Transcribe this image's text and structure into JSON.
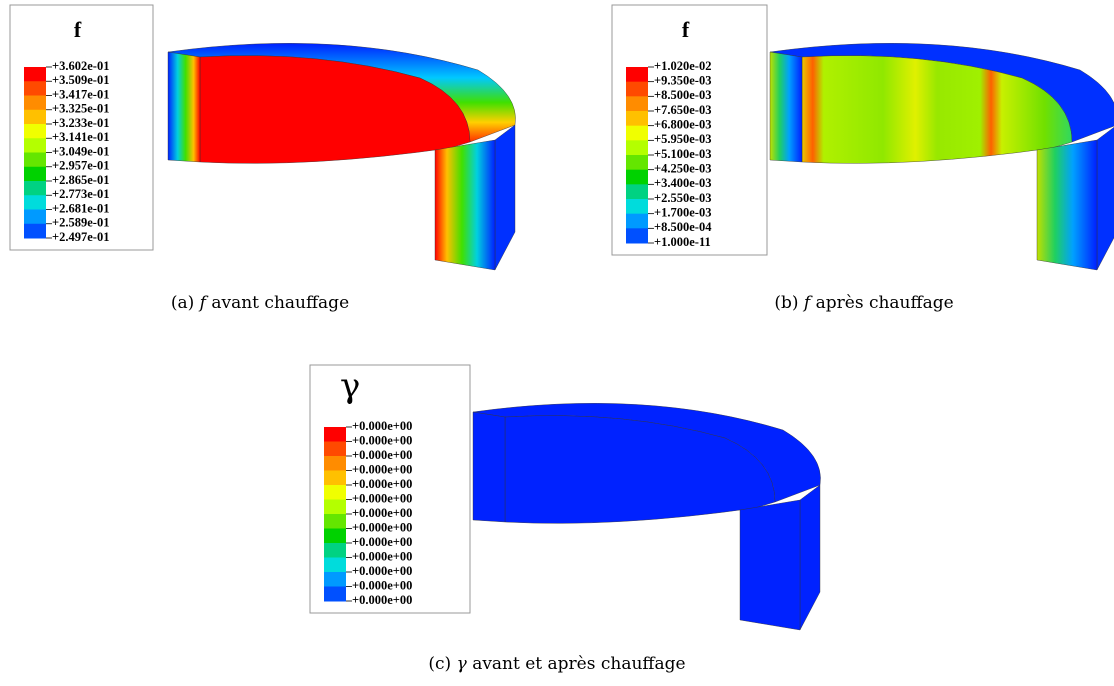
{
  "panels": [
    {
      "legend": {
        "title": "f",
        "labels": [
          "+3.602e-01",
          "+3.509e-01",
          "+3.417e-01",
          "+3.325e-01",
          "+3.233e-01",
          "+3.141e-01",
          "+3.049e-01",
          "+2.957e-01",
          "+2.865e-01",
          "+2.773e-01",
          "+2.681e-01",
          "+2.589e-01",
          "+2.497e-01"
        ]
      },
      "caption": {
        "label": "(a)",
        "symbol": "f",
        "text": "avant chauffage"
      }
    },
    {
      "legend": {
        "title": "f",
        "labels": [
          "+1.020e-02",
          "+9.350e-03",
          "+8.500e-03",
          "+7.650e-03",
          "+6.800e-03",
          "+5.950e-03",
          "+5.100e-03",
          "+4.250e-03",
          "+3.400e-03",
          "+2.550e-03",
          "+1.700e-03",
          "+8.500e-04",
          "+1.000e-11"
        ]
      },
      "caption": {
        "label": "(b)",
        "symbol": "f",
        "text": "après chauffage"
      }
    },
    {
      "legend": {
        "title": "γ",
        "labels": [
          "+0.000e+00",
          "+0.000e+00",
          "+0.000e+00",
          "+0.000e+00",
          "+0.000e+00",
          "+0.000e+00",
          "+0.000e+00",
          "+0.000e+00",
          "+0.000e+00",
          "+0.000e+00",
          "+0.000e+00",
          "+0.000e+00",
          "+0.000e+00"
        ]
      },
      "caption": {
        "label": "(c)",
        "symbol": "γ",
        "text": "avant et après chauffage"
      }
    }
  ]
}
